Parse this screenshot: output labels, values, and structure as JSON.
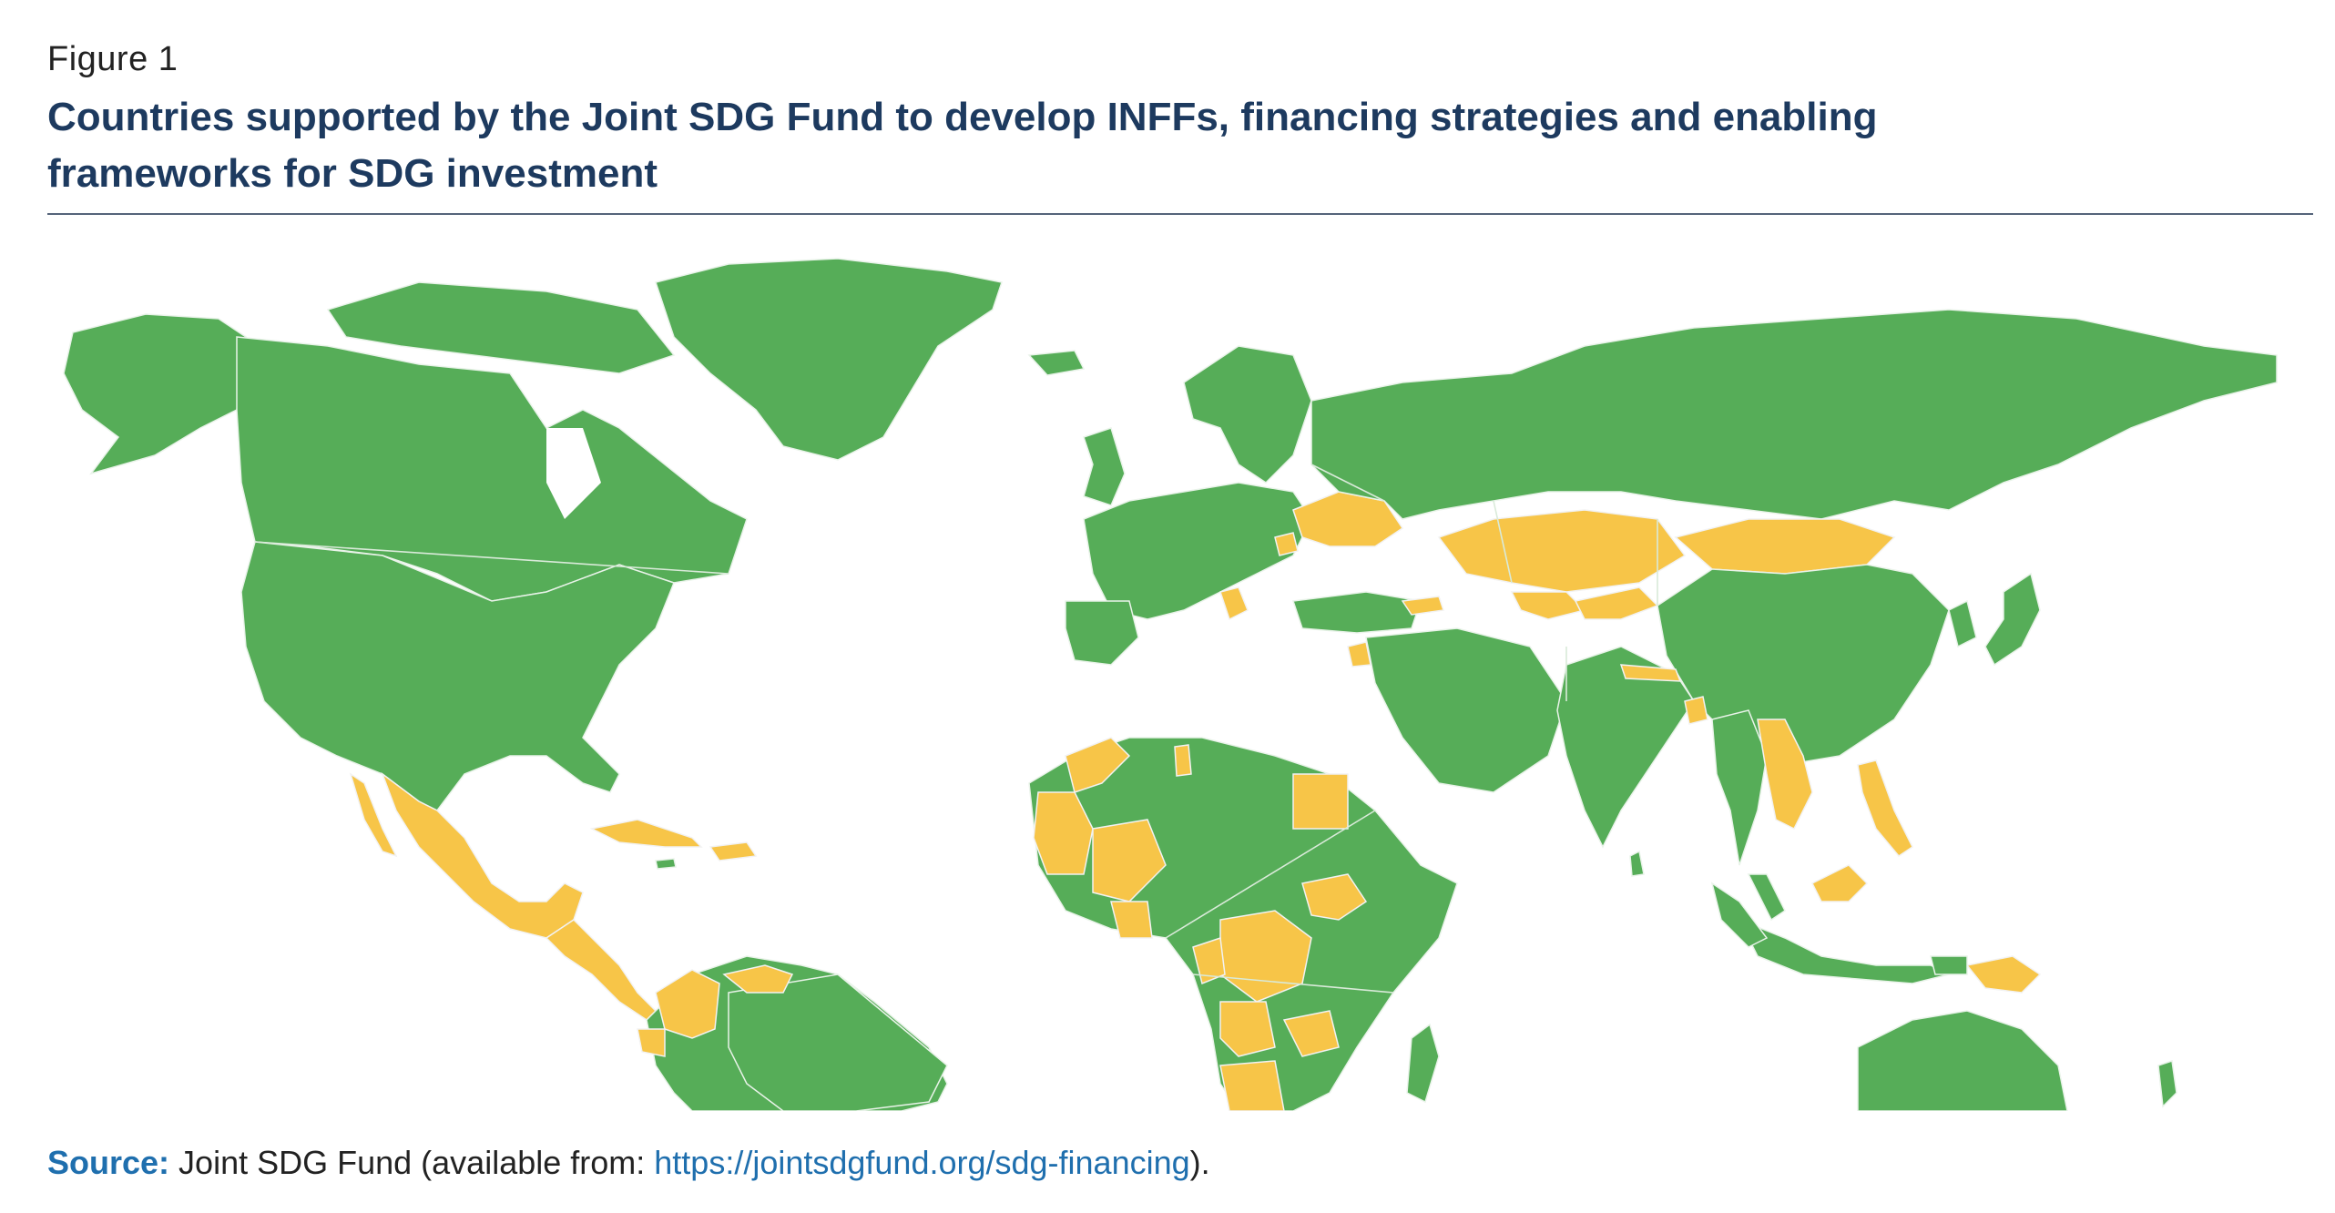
{
  "figure": {
    "label": "Figure 1",
    "title": "Countries supported by the Joint SDG Fund to develop INFFs, financing strategies and enabling frameworks for SDG investment"
  },
  "source": {
    "label": "Source:",
    "text_before": " Joint SDG Fund (available from: ",
    "link": "https://jointsdgfund.org/sdg-financing",
    "text_after": ")."
  },
  "map": {
    "land_color": "#56ad58",
    "supported_color": "#f7c548",
    "background": "#ffffff"
  }
}
